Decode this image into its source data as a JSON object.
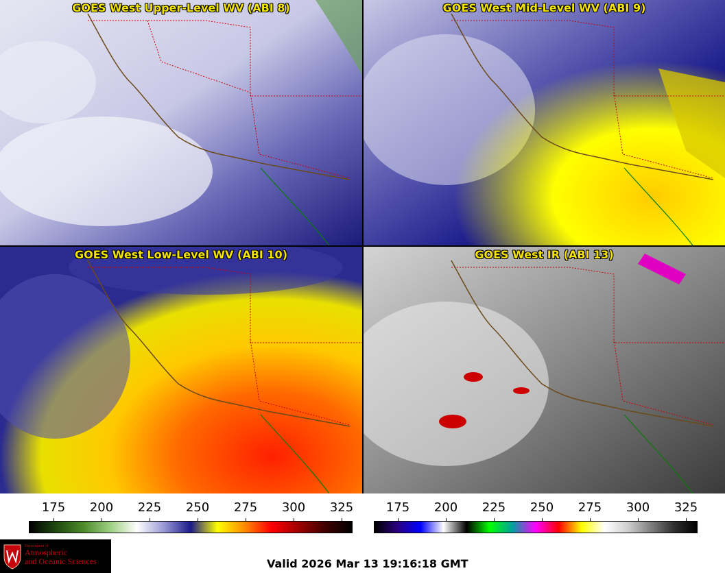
{
  "panels": [
    {
      "id": "upper",
      "title": "GOES West Upper-Level WV (ABI 8)"
    },
    {
      "id": "mid",
      "title": "GOES West Mid-Level WV (ABI 9)"
    },
    {
      "id": "low",
      "title": "GOES West Low-Level WV (ABI 10)"
    },
    {
      "id": "ir",
      "title": "GOES West IR (ABI 13)"
    }
  ],
  "wv_scale": {
    "ticks": [
      "175",
      "200",
      "225",
      "250",
      "275",
      "300",
      "325"
    ],
    "colors": [
      "#000000",
      "#1f4a10",
      "#4c8a2a",
      "#9ccf80",
      "#ffffff",
      "#9a9ad6",
      "#1a1a8a",
      "#ffff00",
      "#ff8c00",
      "#ff0000",
      "#a00000",
      "#400000",
      "#000000"
    ]
  },
  "ir_scale": {
    "ticks": [
      "175",
      "200",
      "225",
      "250",
      "275",
      "300",
      "325"
    ],
    "colors": [
      "#000000",
      "#2a0080",
      "#0000ff",
      "#ffffff",
      "#000000",
      "#00ff00",
      "#00a0a0",
      "#ff00ff",
      "#ff0000",
      "#ffff00",
      "#ffffff",
      "#cfcfcf",
      "#808080",
      "#303030",
      "#000000"
    ]
  },
  "logo": {
    "dept": "Department of",
    "line1": "Atmospheric",
    "line2": "and Oceanic Sciences"
  },
  "valid_text": "Valid 2026 Mar 13 19:16:18 GMT"
}
